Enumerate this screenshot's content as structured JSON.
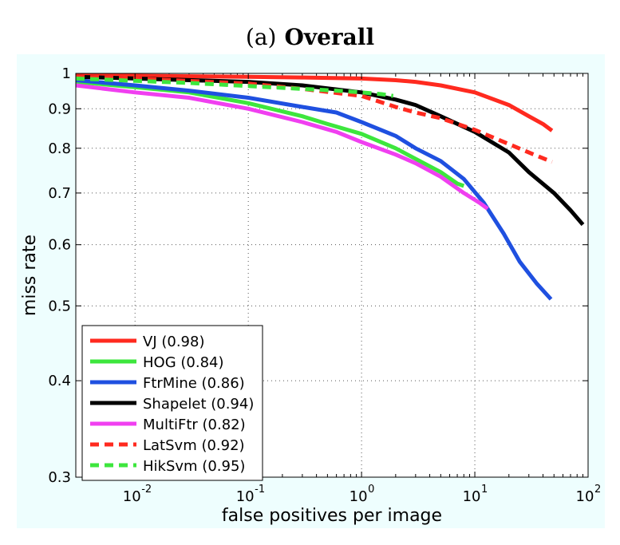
{
  "chart_data": {
    "type": "line",
    "title_prefix": "(a)",
    "title": "Overall",
    "xlabel": "false positives per image",
    "ylabel": "miss rate",
    "xscale": "log",
    "yscale": "log",
    "xlim": [
      0.003,
      100
    ],
    "ylim": [
      0.3,
      1
    ],
    "x_ticks": [
      {
        "value": 0.01,
        "base": "10",
        "exp": "-2"
      },
      {
        "value": 0.1,
        "base": "10",
        "exp": "-1"
      },
      {
        "value": 1,
        "base": "10",
        "exp": "0"
      },
      {
        "value": 10,
        "base": "10",
        "exp": "1"
      },
      {
        "value": 100,
        "base": "10",
        "exp": "2"
      }
    ],
    "y_ticks": [
      {
        "value": 0.3,
        "label": "0.3"
      },
      {
        "value": 0.4,
        "label": "0.4"
      },
      {
        "value": 0.5,
        "label": "0.5"
      },
      {
        "value": 0.6,
        "label": "0.6"
      },
      {
        "value": 0.7,
        "label": "0.7"
      },
      {
        "value": 0.8,
        "label": "0.8"
      },
      {
        "value": 0.9,
        "label": "0.9"
      },
      {
        "value": 1,
        "label": "1"
      }
    ],
    "grid": true,
    "legend_position": "bottom-left",
    "background_color": "#eefefe",
    "series": [
      {
        "name": "VJ",
        "score": "(0.98)",
        "color": "#ff2a1f",
        "dash": false,
        "points": [
          [
            0.003,
            0.995
          ],
          [
            0.01,
            0.993
          ],
          [
            0.1,
            0.99
          ],
          [
            0.3,
            0.988
          ],
          [
            1,
            0.985
          ],
          [
            2,
            0.98
          ],
          [
            3,
            0.975
          ],
          [
            5,
            0.965
          ],
          [
            10,
            0.945
          ],
          [
            20,
            0.91
          ],
          [
            30,
            0.88
          ],
          [
            40,
            0.86
          ],
          [
            48,
            0.843
          ]
        ]
      },
      {
        "name": "HOG",
        "score": "(0.84)",
        "color": "#3de63d",
        "dash": false,
        "points": [
          [
            0.003,
            0.975
          ],
          [
            0.01,
            0.96
          ],
          [
            0.03,
            0.945
          ],
          [
            0.1,
            0.915
          ],
          [
            0.3,
            0.88
          ],
          [
            0.5,
            0.86
          ],
          [
            1,
            0.835
          ],
          [
            2,
            0.8
          ],
          [
            3,
            0.775
          ],
          [
            5,
            0.745
          ],
          [
            7,
            0.72
          ],
          [
            8,
            0.715
          ]
        ]
      },
      {
        "name": "FtrMine",
        "score": "(0.86)",
        "color": "#1f50e0",
        "dash": false,
        "points": [
          [
            0.003,
            0.98
          ],
          [
            0.01,
            0.965
          ],
          [
            0.03,
            0.95
          ],
          [
            0.1,
            0.93
          ],
          [
            0.3,
            0.905
          ],
          [
            0.6,
            0.89
          ],
          [
            1,
            0.865
          ],
          [
            2,
            0.83
          ],
          [
            3,
            0.8
          ],
          [
            5,
            0.77
          ],
          [
            8,
            0.73
          ],
          [
            12,
            0.68
          ],
          [
            18,
            0.62
          ],
          [
            25,
            0.57
          ],
          [
            35,
            0.535
          ],
          [
            47,
            0.51
          ]
        ]
      },
      {
        "name": "Shapelet",
        "score": "(0.94)",
        "color": "#000000",
        "dash": false,
        "points": [
          [
            0.003,
            0.99
          ],
          [
            0.01,
            0.985
          ],
          [
            0.1,
            0.975
          ],
          [
            0.3,
            0.965
          ],
          [
            1,
            0.945
          ],
          [
            2,
            0.925
          ],
          [
            3,
            0.91
          ],
          [
            5,
            0.88
          ],
          [
            10,
            0.84
          ],
          [
            20,
            0.79
          ],
          [
            30,
            0.745
          ],
          [
            50,
            0.7
          ],
          [
            70,
            0.665
          ],
          [
            90,
            0.637
          ]
        ]
      },
      {
        "name": "MultiFtr",
        "score": "(0.82)",
        "color": "#f03ff0",
        "dash": false,
        "points": [
          [
            0.003,
            0.965
          ],
          [
            0.01,
            0.945
          ],
          [
            0.03,
            0.93
          ],
          [
            0.1,
            0.9
          ],
          [
            0.3,
            0.865
          ],
          [
            0.6,
            0.84
          ],
          [
            1,
            0.815
          ],
          [
            2,
            0.785
          ],
          [
            3,
            0.765
          ],
          [
            5,
            0.735
          ],
          [
            8,
            0.7
          ],
          [
            11,
            0.68
          ],
          [
            13,
            0.668
          ]
        ]
      },
      {
        "name": "LatSvm",
        "score": "(0.92)",
        "color": "#ff2a1f",
        "dash": true,
        "points": [
          [
            0.003,
            0.99
          ],
          [
            0.01,
            0.985
          ],
          [
            0.1,
            0.97
          ],
          [
            0.3,
            0.955
          ],
          [
            1,
            0.935
          ],
          [
            2,
            0.905
          ],
          [
            3,
            0.89
          ],
          [
            5,
            0.875
          ],
          [
            10,
            0.845
          ],
          [
            20,
            0.81
          ],
          [
            30,
            0.79
          ],
          [
            48,
            0.768
          ]
        ]
      },
      {
        "name": "HikSvm",
        "score": "(0.95)",
        "color": "#3de63d",
        "dash": true,
        "points": [
          [
            0.003,
            0.985
          ],
          [
            0.01,
            0.978
          ],
          [
            0.03,
            0.972
          ],
          [
            0.1,
            0.963
          ],
          [
            0.3,
            0.955
          ],
          [
            0.6,
            0.95
          ],
          [
            1,
            0.945
          ],
          [
            1.5,
            0.94
          ],
          [
            1.9,
            0.935
          ]
        ]
      }
    ]
  }
}
